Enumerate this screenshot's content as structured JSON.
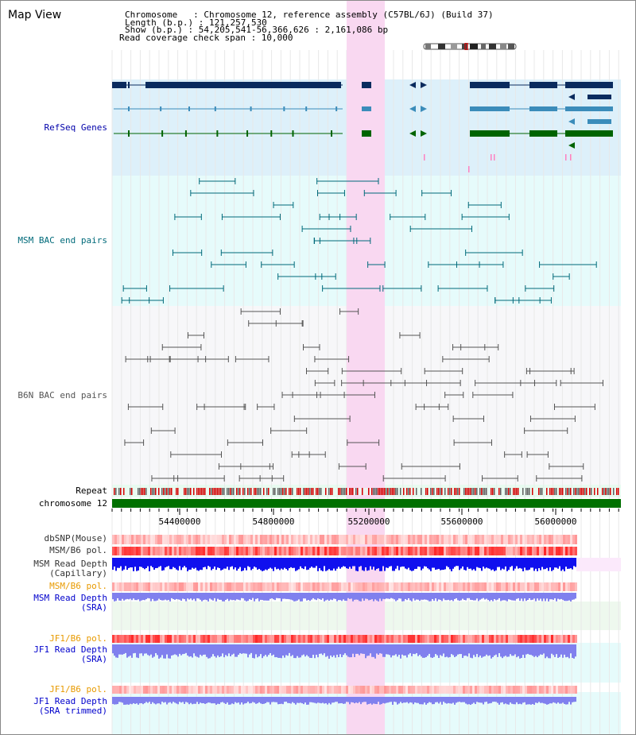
{
  "page": {
    "title": "Map View"
  },
  "info": {
    "line1": "Chromosome   : Chromosome 12, reference assembly (C57BL/6J) (Build 37)",
    "line2": "Length (b.p.) : 121,257,530",
    "line3": "Show (b.p.) : 54,205,541-56,366,626 : 2,161,086 bp",
    "line4": "Read coverage check span : 10,000"
  },
  "colors": {
    "refseq": "#0000aa",
    "msm": "#006a7a",
    "b6n": "#555555",
    "orange": "#e89a00",
    "blue": "#0000cc",
    "highlight": "#f9d8f1"
  },
  "tracks": {
    "refseq": "RefSeq Genes",
    "msm_bac": "MSM BAC end pairs",
    "b6n_bac": "B6N BAC end pairs",
    "repeat": "Repeat",
    "chromosome": "chromosome 12",
    "dbsnp": "dbSNP(Mouse)",
    "msm_b6_pol": "MSM/B6 pol.",
    "msm_depth_cap_1": "MSM Read Depth",
    "msm_depth_cap_2": "(Capillary)",
    "msm_b6_pol_2": "MSM/B6 pol.",
    "msm_depth_sra_1": "MSM Read Depth",
    "msm_depth_sra_2": "(SRA)",
    "jf1_b6_pol": "JF1/B6 pol.",
    "jf1_depth_sra_1": "JF1 Read Depth",
    "jf1_depth_sra_2": "(SRA)",
    "jf1_b6_pol_2": "JF1/B6 pol.",
    "jf1_depth_trim_1": "JF1 Read Depth",
    "jf1_depth_trim_2": "(SRA trimmed)"
  },
  "axis": {
    "ticks": [
      "54400000",
      "54800000",
      "55200000",
      "55600000",
      "56000000"
    ]
  }
}
